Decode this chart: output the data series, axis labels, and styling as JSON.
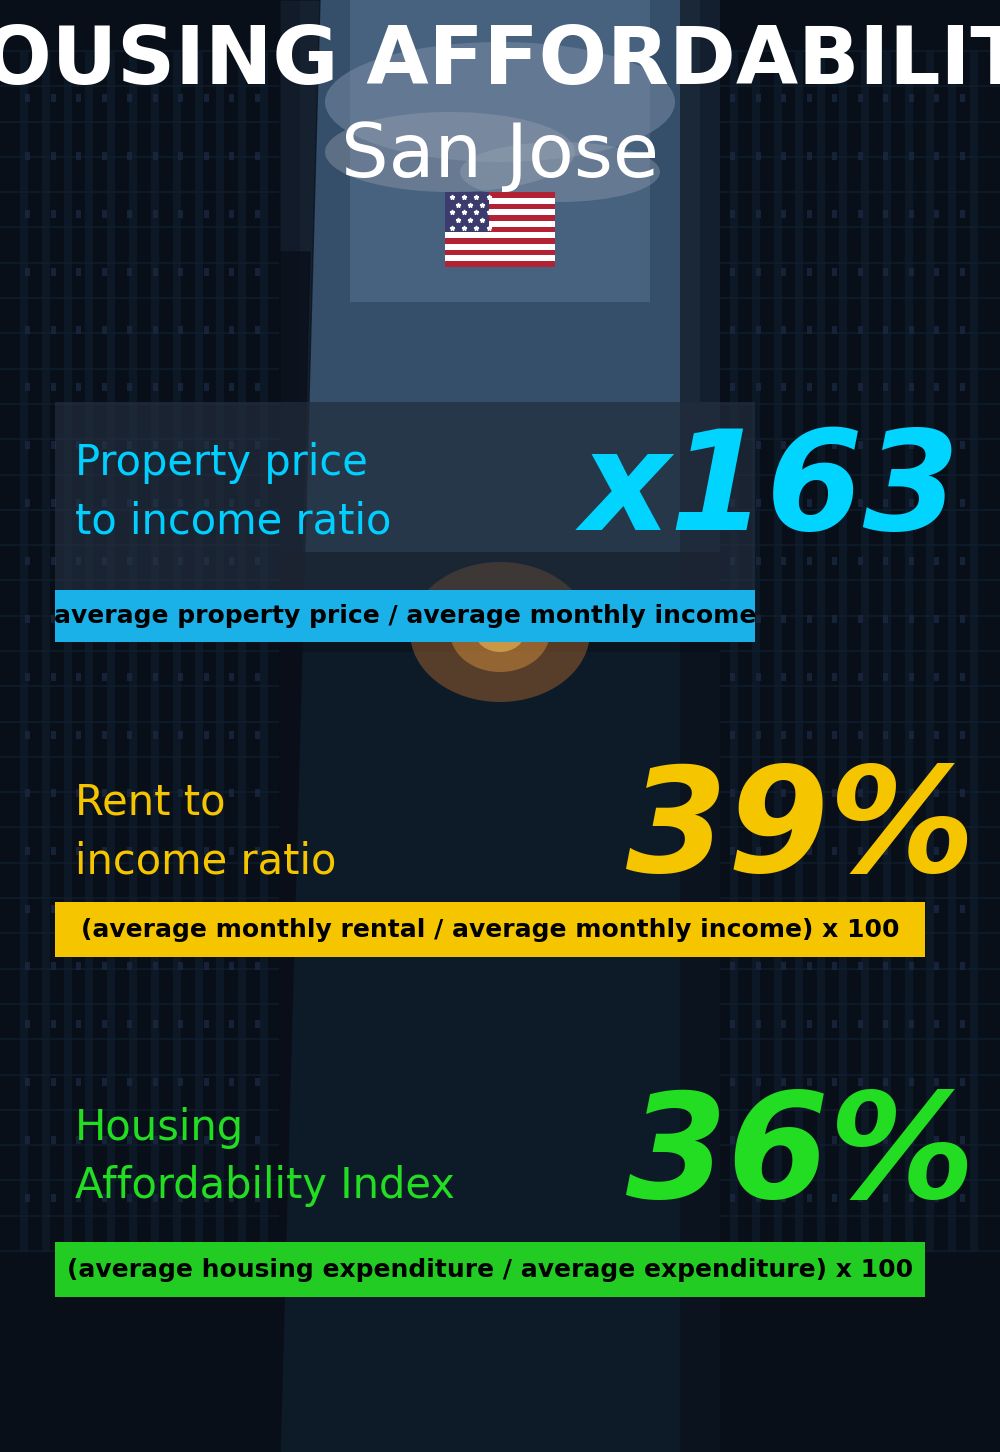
{
  "title_line1": "HOUSING AFFORDABILITY",
  "title_line2": "San Jose",
  "flag_emoji": "🇺🇸",
  "section1_label": "Property price\nto income ratio",
  "section1_value": "x163",
  "section1_label_color": "#00cfff",
  "section1_value_color": "#00d4ff",
  "section1_banner_text": "average property price / average monthly income",
  "section1_banner_bg": "#1ab0e8",
  "section1_banner_text_color": "#000000",
  "section2_label": "Rent to\nincome ratio",
  "section2_value": "39%",
  "section2_label_color": "#f5c500",
  "section2_value_color": "#f5c500",
  "section2_banner_text": "(average monthly rental / average monthly income) x 100",
  "section2_banner_bg": "#f5c500",
  "section2_banner_text_color": "#000000",
  "section3_label": "Housing\nAffordability Index",
  "section3_value": "36%",
  "section3_label_color": "#22dd22",
  "section3_value_color": "#22dd22",
  "section3_banner_text": "(average housing expenditure / average expenditure) x 100",
  "section3_banner_bg": "#22cc22",
  "section3_banner_text_color": "#000000",
  "bg_color": "#0a1520",
  "title_color": "#ffffff",
  "subtitle_color": "#ffffff",
  "fig_width": 10.0,
  "fig_height": 14.52,
  "dpi": 100
}
